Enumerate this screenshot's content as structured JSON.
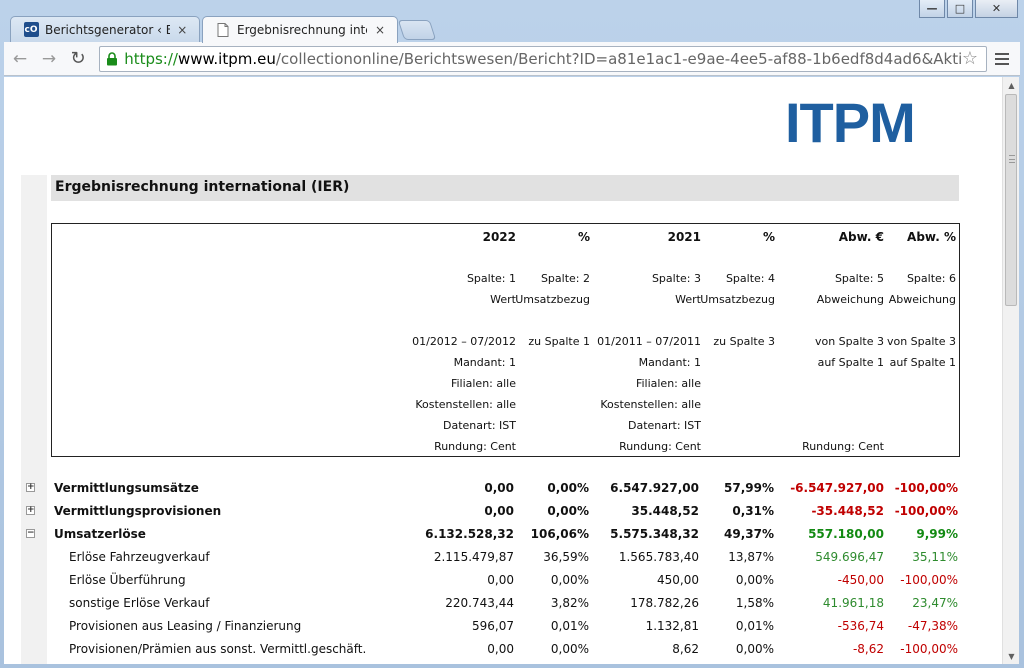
{
  "browser": {
    "tabs": [
      {
        "title": "Berichtsgenerator ‹ Berich",
        "icon": "co-icon",
        "close": "×"
      },
      {
        "title": "Ergebnisrechnung interna",
        "icon": "page-icon",
        "close": "×"
      }
    ],
    "url": {
      "scheme": "https://",
      "host": "www.itpm.eu",
      "path": "/collectiononline/Berichtswesen/Bericht?ID=a81e1ac1-e9ae-4ee5-af88-1b6edf8d4ad6&Aktion=Anzeigen"
    },
    "favicon_text": "cO"
  },
  "page": {
    "logo": "ITPM",
    "title": "Ergebnisrechnung international (IER)"
  },
  "header": {
    "c1": {
      "year": "2022",
      "spalte": "Spalte: 1",
      "desc": "Wert",
      "period": "01/2012 – 07/2012",
      "mandant": "Mandant: 1",
      "filialen": "Filialen: alle",
      "kst": "Kostenstellen: alle",
      "datenart": "Datenart: IST",
      "rundung": "Rundung: Cent"
    },
    "c2": {
      "year": "%",
      "spalte": "Spalte: 2",
      "desc": "Umsatzbezug",
      "ref": "zu Spalte 1"
    },
    "c3": {
      "year": "2021",
      "spalte": "Spalte: 3",
      "desc": "Wert",
      "period": "01/2011 – 07/2011",
      "mandant": "Mandant: 1",
      "filialen": "Filialen: alle",
      "kst": "Kostenstellen: alle",
      "datenart": "Datenart: IST",
      "rundung": "Rundung: Cent"
    },
    "c4": {
      "year": "%",
      "spalte": "Spalte: 4",
      "desc": "Umsatzbezug",
      "ref": "zu Spalte 3"
    },
    "c5": {
      "year": "Abw. €",
      "spalte": "Spalte: 5",
      "desc": "Abweichung",
      "ref1": "von Spalte 3",
      "ref2": "auf Spalte 1",
      "rundung": "Rundung: Cent"
    },
    "c6": {
      "year": "Abw. %",
      "spalte": "Spalte: 6",
      "desc": "Abweichung",
      "ref1": "von Spalte 3",
      "ref2": "auf Spalte 1"
    }
  },
  "rows": [
    {
      "label": "Vermittlungsumsätze",
      "toggle": "+",
      "bold": true,
      "v1": "0,00",
      "p1": "0,00%",
      "v2": "6.547.927,00",
      "p2": "57,99%",
      "d": "-6.547.927,00",
      "dp": "-100,00%",
      "sign": "neg"
    },
    {
      "label": "Vermittlungsprovisionen",
      "toggle": "+",
      "bold": true,
      "v1": "0,00",
      "p1": "0,00%",
      "v2": "35.448,52",
      "p2": "0,31%",
      "d": "-35.448,52",
      "dp": "-100,00%",
      "sign": "neg"
    },
    {
      "label": "Umsatzerlöse",
      "toggle": "−",
      "bold": true,
      "v1": "6.132.528,32",
      "p1": "106,06%",
      "v2": "5.575.348,32",
      "p2": "49,37%",
      "d": "557.180,00",
      "dp": "9,99%",
      "sign": "pos"
    },
    {
      "label": "Erlöse Fahrzeugverkauf",
      "bold": false,
      "v1": "2.115.479,87",
      "p1": "36,59%",
      "v2": "1.565.783,40",
      "p2": "13,87%",
      "d": "549.696,47",
      "dp": "35,11%",
      "sign": "pos"
    },
    {
      "label": "Erlöse Überführung",
      "bold": false,
      "v1": "0,00",
      "p1": "0,00%",
      "v2": "450,00",
      "p2": "0,00%",
      "d": "-450,00",
      "dp": "-100,00%",
      "sign": "neg"
    },
    {
      "label": "sonstige Erlöse Verkauf",
      "bold": false,
      "v1": "220.743,44",
      "p1": "3,82%",
      "v2": "178.782,26",
      "p2": "1,58%",
      "d": "41.961,18",
      "dp": "23,47%",
      "sign": "pos"
    },
    {
      "label": "Provisionen aus Leasing / Finanzierung",
      "bold": false,
      "v1": "596,07",
      "p1": "0,01%",
      "v2": "1.132,81",
      "p2": "0,01%",
      "d": "-536,74",
      "dp": "-47,38%",
      "sign": "neg"
    },
    {
      "label": "Provisionen/Prämien aus sonst. Vermittl.geschäft.",
      "bold": false,
      "v1": "0,00",
      "p1": "0,00%",
      "v2": "8,62",
      "p2": "0,00%",
      "d": "-8,62",
      "dp": "-100,00%",
      "sign": "neg"
    }
  ],
  "colors": {
    "negative": "#c00000",
    "positive": "#2e8b2e",
    "logo": "#1f5fa0"
  }
}
